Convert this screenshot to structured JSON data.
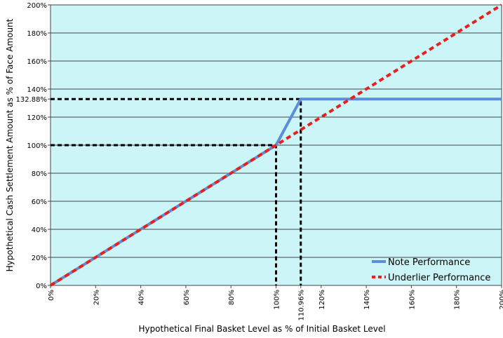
{
  "chart_data": {
    "type": "line",
    "title": "",
    "xlabel": "Hypothetical Final Basket Level as % of Initial Basket Level",
    "ylabel": "Hypothetical Cash Settlement Amount as % of Face Amount",
    "xlim": [
      0,
      200
    ],
    "ylim": [
      0,
      200
    ],
    "x_ticks": [
      0,
      20,
      40,
      60,
      80,
      100,
      110.96,
      120,
      140,
      160,
      180,
      200
    ],
    "x_tick_labels": [
      "0%",
      "20%",
      "40%",
      "60%",
      "80%",
      "100%",
      "110.96%",
      "120%",
      "140%",
      "160%",
      "180%",
      "200%"
    ],
    "y_ticks": [
      0,
      20,
      40,
      60,
      80,
      100,
      120,
      132.88,
      140,
      160,
      180,
      200
    ],
    "y_tick_labels": [
      "0%",
      "20%",
      "40%",
      "60%",
      "80%",
      "100%",
      "120%",
      "132.88%",
      "140%",
      "160%",
      "180%",
      "200%"
    ],
    "grid": true,
    "background_color": "#ccf5f7",
    "legend_position": "bottom-right",
    "series": [
      {
        "name": "Note Performance",
        "style": "solid",
        "color": "#5b8ed6",
        "x": [
          0,
          100,
          110.96,
          200
        ],
        "y": [
          0,
          100,
          132.88,
          132.88
        ]
      },
      {
        "name": "Underlier Performance",
        "style": "dashed",
        "color": "#e8201c",
        "x": [
          0,
          200
        ],
        "y": [
          0,
          200
        ]
      }
    ],
    "reference_lines": [
      {
        "style": "dashed",
        "color": "#000000",
        "points": [
          [
            0,
            100
          ],
          [
            100,
            100
          ],
          [
            100,
            0
          ]
        ]
      },
      {
        "style": "dashed",
        "color": "#000000",
        "points": [
          [
            0,
            132.88
          ],
          [
            110.96,
            132.88
          ],
          [
            110.96,
            0
          ]
        ]
      }
    ]
  }
}
